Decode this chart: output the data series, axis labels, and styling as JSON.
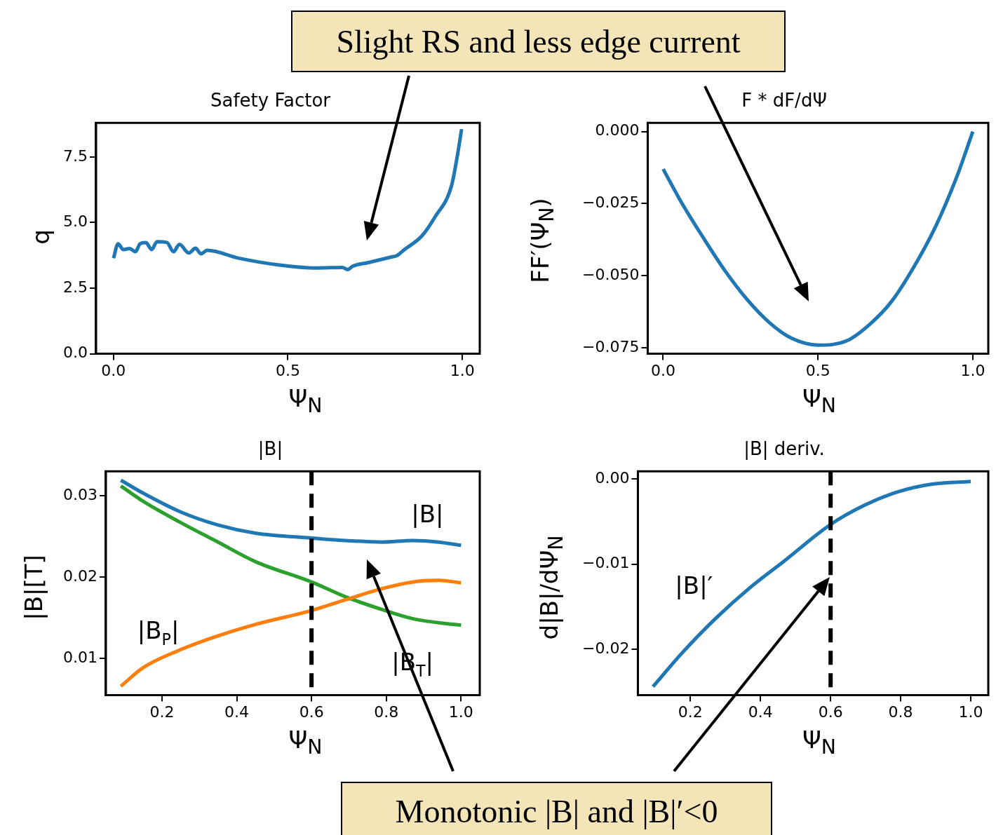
{
  "chart_data": [
    {
      "type": "line",
      "title": "Safety Factor",
      "xlabel": "Ψ$_{N}$",
      "ylabel": "q",
      "annotations": [
        "Slight RS and less edge current"
      ],
      "x": [
        0,
        0.013,
        0.028,
        0.046,
        0.063,
        0.076,
        0.093,
        0.109,
        0.125,
        0.153,
        0.172,
        0.189,
        0.216,
        0.235,
        0.251,
        0.268,
        0.36,
        0.471,
        0.582,
        0.656,
        0.671,
        0.686,
        0.729,
        0.797,
        0.812,
        0.834,
        0.884,
        0.921,
        0.969,
        0.984,
        0.998
      ],
      "series": [
        {
          "color": "#1f77b4",
          "values": [
            3.64,
            4.19,
            3.97,
            4.01,
            3.89,
            4.19,
            4.24,
            3.97,
            4.27,
            4.24,
            3.89,
            4.17,
            3.84,
            4.02,
            3.81,
            3.94,
            3.64,
            3.39,
            3.27,
            3.29,
            3.21,
            3.34,
            3.47,
            3.69,
            3.74,
            3.97,
            4.49,
            5.2,
            6.4,
            7.41,
            8.56
          ]
        }
      ],
      "xlim": [
        -0.05,
        1.05
      ],
      "ylim": [
        0,
        8.8
      ],
      "xticks": [
        {
          "value": 0,
          "label": "0.0"
        },
        {
          "value": 0.5,
          "label": "0.5"
        },
        {
          "value": 1,
          "label": "1.0"
        }
      ],
      "yticks": [
        {
          "value": 0,
          "label": "0.0"
        },
        {
          "value": 2.5,
          "label": "2.5"
        },
        {
          "value": 5,
          "label": "5.0"
        },
        {
          "value": 7.5,
          "label": "7.5"
        }
      ],
      "grid": false
    },
    {
      "type": "line",
      "title": "F * dF/dΨ",
      "xlabel": "Ψ$_{N}$",
      "ylabel": "FF′(Ψ$_{N}$)",
      "x": [
        0,
        0.057,
        0.129,
        0.2,
        0.271,
        0.343,
        0.414,
        0.5,
        0.593,
        0.664,
        0.736,
        0.807,
        0.879,
        0.95,
        1.0
      ],
      "series": [
        {
          "color": "#1f77b4",
          "values": [
            -0.013,
            -0.0242,
            -0.0367,
            -0.0483,
            -0.0582,
            -0.0662,
            -0.0716,
            -0.074,
            -0.0725,
            -0.0671,
            -0.0591,
            -0.0474,
            -0.0331,
            -0.0152,
            0.0
          ]
        }
      ],
      "xlim": [
        -0.05,
        1.05
      ],
      "ylim": [
        -0.077,
        0.003
      ],
      "xticks": [
        {
          "value": 0,
          "label": "0.0"
        },
        {
          "value": 0.5,
          "label": "0.5"
        },
        {
          "value": 1,
          "label": "1.0"
        }
      ],
      "yticks": [
        {
          "value": -0.075,
          "label": "−0.075"
        },
        {
          "value": -0.05,
          "label": "−0.050"
        },
        {
          "value": -0.025,
          "label": "−0.025"
        },
        {
          "value": 0,
          "label": "0.000"
        }
      ],
      "grid": false
    },
    {
      "type": "line",
      "title": "|B|",
      "xlabel": "Ψ$_{N}$",
      "ylabel": "|B|[T]",
      "annotations": [
        "Monotonic |B| and |B|′<0"
      ],
      "x": [
        0.09,
        0.15,
        0.25,
        0.35,
        0.45,
        0.6,
        0.69,
        0.79,
        0.87,
        0.94,
        1.0
      ],
      "series": [
        {
          "name": "|B|",
          "color": "#1f77b4",
          "values": [
            0.0319,
            0.0303,
            0.028,
            0.0264,
            0.0254,
            0.0248,
            0.0245,
            0.0243,
            0.0245,
            0.0243,
            0.0239
          ]
        },
        {
          "name": "|B$_{P}$|",
          "color": "#ff7f0e",
          "values": [
            0.0066,
            0.0089,
            0.0111,
            0.0128,
            0.0142,
            0.0159,
            0.0172,
            0.0186,
            0.0194,
            0.0196,
            0.0193
          ]
        },
        {
          "name": "|B$_{T}$|",
          "color": "#2ca02c",
          "values": [
            0.0312,
            0.0293,
            0.0267,
            0.0243,
            0.0219,
            0.0194,
            0.0176,
            0.016,
            0.0149,
            0.0144,
            0.0141
          ]
        }
      ],
      "xlim": [
        0.05,
        1.05
      ],
      "ylim": [
        0.0055,
        0.033
      ],
      "xticks": [
        {
          "value": 0.2,
          "label": "0.2"
        },
        {
          "value": 0.4,
          "label": "0.4"
        },
        {
          "value": 0.6,
          "label": "0.6"
        },
        {
          "value": 0.8,
          "label": "0.8"
        },
        {
          "value": 1,
          "label": "1.0"
        }
      ],
      "yticks": [
        {
          "value": 0.01,
          "label": "0.01"
        },
        {
          "value": 0.02,
          "label": "0.02"
        },
        {
          "value": 0.03,
          "label": "0.03"
        }
      ],
      "ref_lines": [
        {
          "axis": "x",
          "value": 0.6,
          "color": "#000000",
          "line_style": "dashed"
        }
      ],
      "grid": false
    },
    {
      "type": "line",
      "title": "|B| deriv.",
      "xlabel": "Ψ$_{N}$",
      "ylabel": "d|B|/dΨ$_{N}$",
      "x": [
        0.093,
        0.177,
        0.274,
        0.372,
        0.469,
        0.598,
        0.696,
        0.793,
        0.89,
        1.0
      ],
      "series": [
        {
          "name": "|B|′",
          "color": "#1f77b4",
          "values": [
            -0.0244,
            -0.0204,
            -0.0163,
            -0.0127,
            -0.0096,
            -0.0054,
            -0.0031,
            -0.0015,
            -0.0006,
            -0.0003
          ]
        }
      ],
      "xlim": [
        0.05,
        1.05
      ],
      "ylim": [
        -0.0254,
        0.0009
      ],
      "xticks": [
        {
          "value": 0.2,
          "label": "0.2"
        },
        {
          "value": 0.4,
          "label": "0.4"
        },
        {
          "value": 0.6,
          "label": "0.6"
        },
        {
          "value": 0.8,
          "label": "0.8"
        },
        {
          "value": 1,
          "label": "1.0"
        }
      ],
      "yticks": [
        {
          "value": -0.02,
          "label": "−0.02"
        },
        {
          "value": -0.01,
          "label": "−0.01"
        },
        {
          "value": 0,
          "label": "0.00"
        }
      ],
      "ref_lines": [
        {
          "axis": "x",
          "value": 0.6,
          "color": "#000000",
          "line_style": "dashed"
        }
      ],
      "grid": false
    }
  ]
}
